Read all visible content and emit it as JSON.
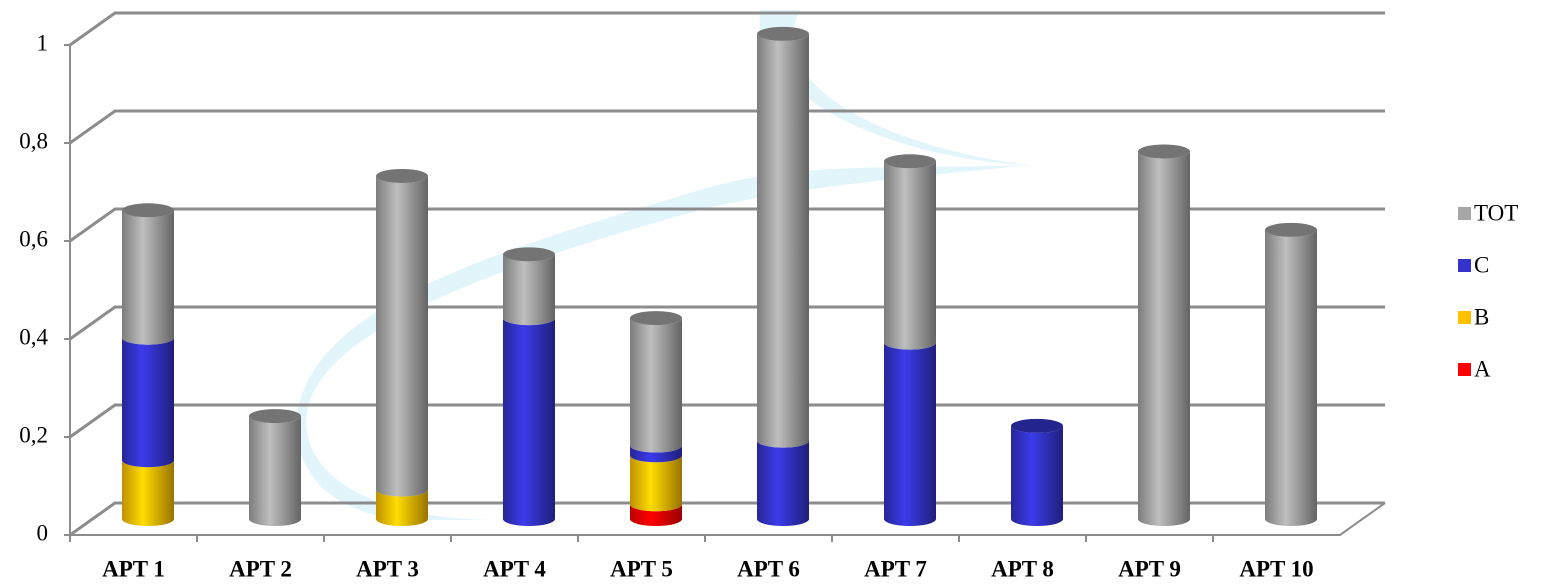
{
  "chart_data": {
    "type": "bar",
    "categories": [
      "APT 1",
      "APT 2",
      "APT 3",
      "APT 4",
      "APT 5",
      "APT 6",
      "APT 7",
      "APT 8",
      "APT 9",
      "APT 10"
    ],
    "series": [
      {
        "name": "A",
        "color": "#ff0000",
        "values": [
          null,
          null,
          null,
          null,
          0.03,
          null,
          null,
          null,
          null,
          null
        ]
      },
      {
        "name": "B",
        "color": "#ffc000",
        "values": [
          0.12,
          null,
          0.06,
          null,
          0.1,
          null,
          null,
          null,
          null,
          null
        ]
      },
      {
        "name": "C",
        "color": "#3333cc",
        "values": [
          0.25,
          null,
          null,
          0.41,
          0.02,
          0.16,
          0.36,
          0.19,
          null,
          null
        ]
      },
      {
        "name": "TOT",
        "color": "#a6a6a6",
        "values": [
          0.26,
          0.21,
          0.64,
          0.13,
          0.26,
          0.83,
          0.37,
          null,
          0.75,
          0.59
        ]
      }
    ],
    "stacked": true,
    "ylim": [
      0,
      1
    ],
    "yticks": [
      0,
      {
        "value": 0.2,
        "label": "0,2"
      },
      {
        "value": 0.4,
        "label": "0,4"
      },
      {
        "value": 0.6,
        "label": "0,6"
      },
      {
        "value": 0.8,
        "label": "0,8"
      },
      1
    ],
    "grid": true,
    "legend": "right"
  }
}
